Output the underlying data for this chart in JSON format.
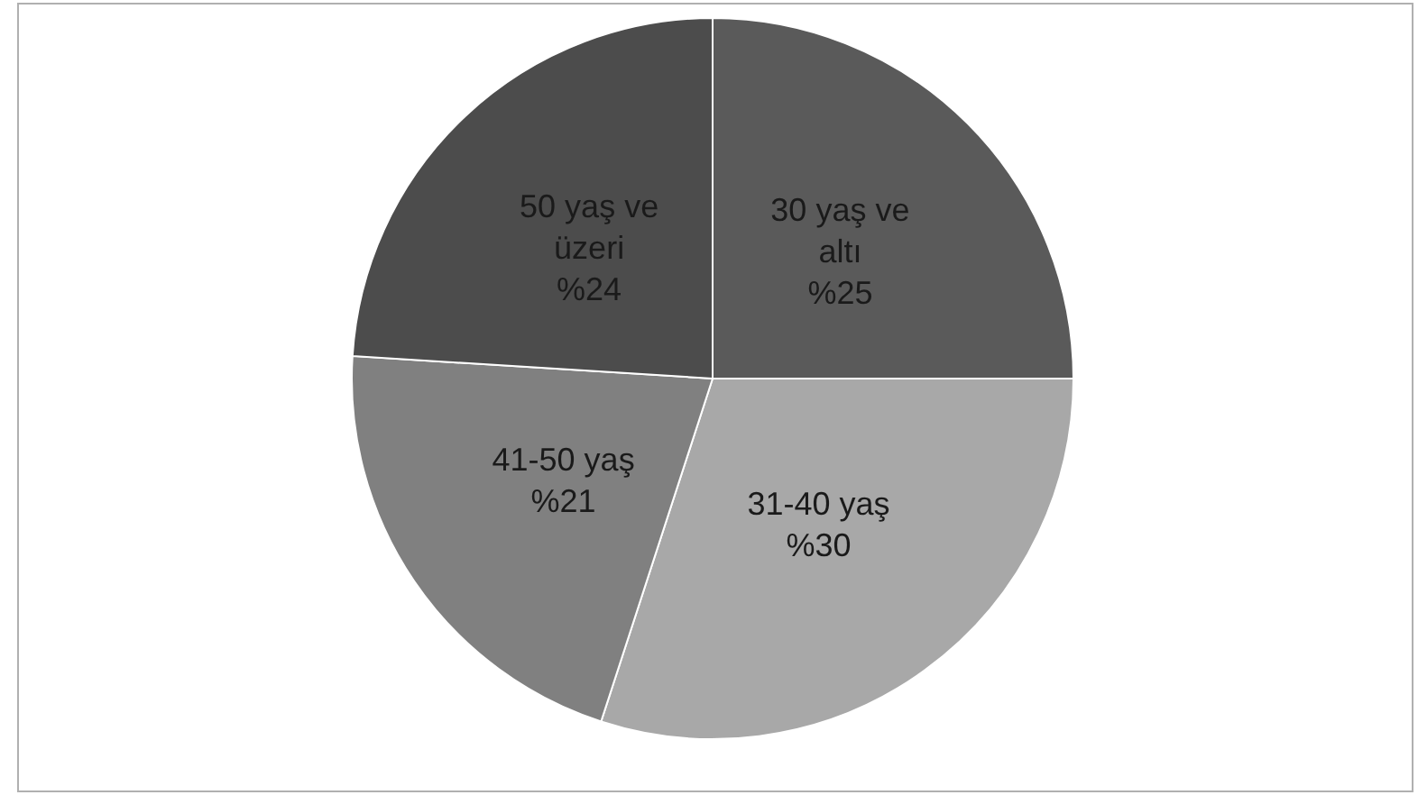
{
  "chart_data": {
    "type": "pie",
    "categories": [
      "30 yaş ve altı",
      "31-40 yaş",
      "41-50 yaş",
      "50 yaş ve üzeri"
    ],
    "values": [
      25,
      30,
      21,
      24
    ],
    "value_labels": [
      "%25",
      "%30",
      "%21",
      "%24"
    ],
    "colors": [
      "#5a5a5a",
      "#a8a8a8",
      "#808080",
      "#4c4c4c"
    ],
    "legend": false
  }
}
